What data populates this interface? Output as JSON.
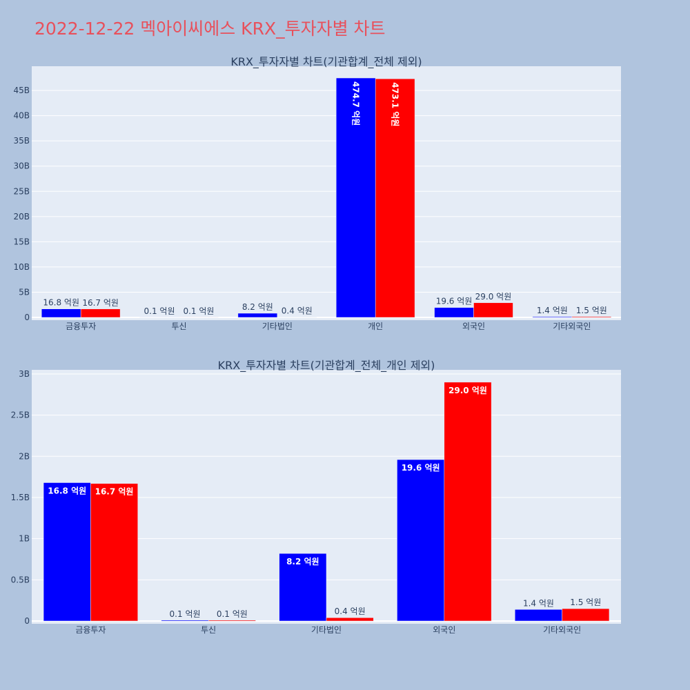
{
  "page": {
    "title": "2022-12-22 멕아이씨에스 KRX_투자자별 차트",
    "title_color": "#e8505b",
    "background": "#b0c4de",
    "plot_background": "#e5ecf6"
  },
  "chart_data": [
    {
      "type": "bar",
      "title": "KRX_투자자별 차트(기관합계_전체 제외)",
      "categories": [
        "금융투자",
        "투신",
        "기타법인",
        "개인",
        "외국인",
        "기타외국인"
      ],
      "series": [
        {
          "color": "#0000ff",
          "values": [
            1680000000,
            10000000,
            820000000,
            47470000000,
            1960000000,
            140000000
          ],
          "labels": [
            "16.8 억원",
            "0.1 억원",
            "8.2 억원",
            "474.7 억원",
            "19.6 억원",
            "1.4 억원"
          ]
        },
        {
          "color": "#ff0000",
          "values": [
            1670000000,
            10000000,
            40000000,
            47310000000,
            2900000000,
            150000000
          ],
          "labels": [
            "16.7 억원",
            "0.1 억원",
            "0.4 억원",
            "473.1 억원",
            "29.0 억원",
            "1.5 억원"
          ]
        }
      ],
      "ylim": [
        0,
        49800000000
      ],
      "yticks": [
        0,
        5000000000,
        10000000000,
        15000000000,
        20000000000,
        25000000000,
        30000000000,
        35000000000,
        40000000000,
        45000000000
      ],
      "ytick_labels": [
        "0",
        "5B",
        "10B",
        "15B",
        "20B",
        "25B",
        "30B",
        "35B",
        "40B",
        "45B"
      ],
      "grid": true,
      "legend": false
    },
    {
      "type": "bar",
      "title": "KRX_투자자별 차트(기관합계_전체_개인 제외)",
      "categories": [
        "금융투자",
        "투신",
        "기타법인",
        "외국인",
        "기타외국인"
      ],
      "series": [
        {
          "color": "#0000ff",
          "values": [
            1680000000,
            10000000,
            820000000,
            1960000000,
            140000000
          ],
          "labels": [
            "16.8 억원",
            "0.1 억원",
            "8.2 억원",
            "19.6 억원",
            "1.4 억원"
          ]
        },
        {
          "color": "#ff0000",
          "values": [
            1670000000,
            10000000,
            40000000,
            2900000000,
            150000000
          ],
          "labels": [
            "16.7 억원",
            "0.1 억원",
            "0.4 억원",
            "29.0 억원",
            "1.5 억원"
          ]
        }
      ],
      "ylim": [
        0,
        3050000000
      ],
      "yticks": [
        0,
        500000000,
        1000000000,
        1500000000,
        2000000000,
        2500000000,
        3000000000
      ],
      "ytick_labels": [
        "0",
        "0.5B",
        "1B",
        "1.5B",
        "2B",
        "2.5B",
        "3B"
      ],
      "grid": true,
      "legend": false
    }
  ]
}
